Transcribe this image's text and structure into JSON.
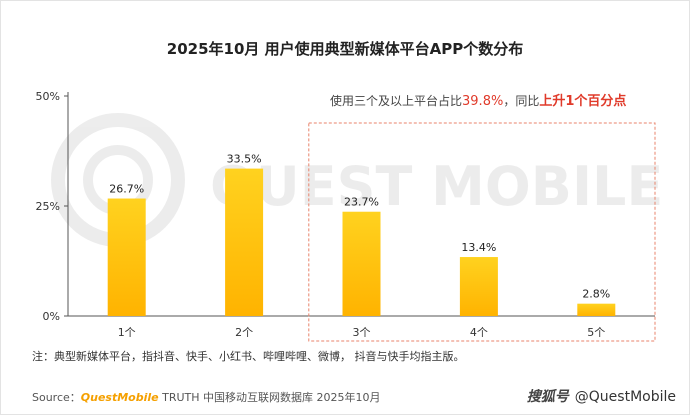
{
  "title": "2025年10月 用户使用典型新媒体平台APP个数分布",
  "callout": {
    "prefix": "使用三个及以上平台占比",
    "value": "39.8%",
    "sep": "，同比",
    "change": "上升1个百分点"
  },
  "watermark": "QUEST MOBILE",
  "note": "注：典型新媒体平台，指抖音、快手、小红书、哔哩哔哩、微博， 抖音与快手均指主版。",
  "source": {
    "prefix": "Source：",
    "brand": "QuestMobile",
    "rest": " TRUTH 中国移动互联网数据库 2025年10月"
  },
  "credit": {
    "site": "搜狐号",
    "account": "@QuestMobile"
  },
  "colors": {
    "bar_top": "#ffd21f",
    "bar_bottom": "#ffb300",
    "highlight_box": "#e8836b",
    "accent": "#e03a2a"
  },
  "chart_data": {
    "type": "bar",
    "categories": [
      "1个",
      "2个",
      "3个",
      "4个",
      "5个"
    ],
    "values": [
      26.7,
      33.5,
      23.7,
      13.4,
      2.8
    ],
    "value_labels": [
      "26.7%",
      "33.5%",
      "23.7%",
      "13.4%",
      "2.8%"
    ],
    "yticks": [
      "0%",
      "25%",
      "50%"
    ],
    "ylim": [
      0,
      50
    ],
    "grid": false,
    "highlighted_categories": [
      "3个",
      "4个",
      "5个"
    ]
  }
}
